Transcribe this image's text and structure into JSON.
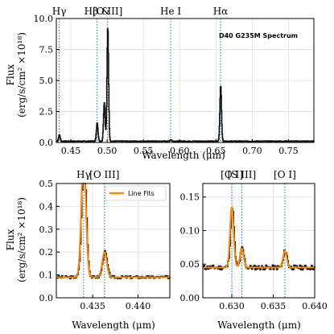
{
  "colors": {
    "data": "#111111",
    "fit": "#ff8c00",
    "marker": "#1f77b4",
    "grid": "#e6e6e6"
  },
  "chart_data": [
    {
      "type": "line",
      "xlabel": "Wavelength (μm)",
      "ylabel_line1": "Flux",
      "ylabel_line2": "(erg/s/cm² ×10¹⁸)",
      "annotation": "D40 G235M Spectrum",
      "xlim": [
        0.43,
        0.785
      ],
      "ylim": [
        0,
        10
      ],
      "xticks": [
        "0.45",
        "0.50",
        "0.55",
        "0.60",
        "0.65",
        "0.70",
        "0.75"
      ],
      "xtick_values": [
        0.45,
        0.5,
        0.55,
        0.6,
        0.65,
        0.7,
        0.75
      ],
      "yticks": [
        "0.0",
        "2.5",
        "5.0",
        "7.5",
        "10.0"
      ],
      "ytick_values": [
        0,
        2.5,
        5,
        7.5,
        10
      ],
      "grid": true,
      "line_markers": [
        {
          "label": "Hγ",
          "x": 0.434
        },
        {
          "label": "Hβ &",
          "x": 0.4861
        },
        {
          "label": "[O III]",
          "x": 0.5007
        },
        {
          "label": "He I",
          "x": 0.5876
        },
        {
          "label": "Hα",
          "x": 0.6563
        }
      ],
      "continuum": 0.1,
      "lines": [
        {
          "x": 0.434,
          "peak": 0.6
        },
        {
          "x": 0.4861,
          "peak": 1.6
        },
        {
          "x": 0.4959,
          "peak": 3.2
        },
        {
          "x": 0.5007,
          "peak": 9.3
        },
        {
          "x": 0.5876,
          "peak": 0.22
        },
        {
          "x": 0.6563,
          "peak": 4.6
        }
      ]
    },
    {
      "type": "line",
      "xlabel": "Wavelength (μm)",
      "ylabel_line1": "Flux",
      "ylabel_line2": "(erg/s/cm² ×10¹⁸)",
      "xlim": [
        0.431,
        0.4435
      ],
      "ylim": [
        0,
        0.5
      ],
      "xticks": [
        "0.435",
        "0.440"
      ],
      "xtick_values": [
        0.435,
        0.44
      ],
      "yticks": [
        "0.0",
        "0.1",
        "0.2",
        "0.3",
        "0.4",
        "0.5"
      ],
      "ytick_values": [
        0,
        0.1,
        0.2,
        0.3,
        0.4,
        0.5
      ],
      "grid": true,
      "legend": {
        "label": "Line Fits",
        "placement": "upper-right"
      },
      "line_markers": [
        {
          "label": "Hγ",
          "x": 0.434
        },
        {
          "label": "[O III]",
          "x": 0.4363
        }
      ],
      "continuum": 0.09,
      "lines": [
        {
          "x": 0.434,
          "peak": 0.62
        },
        {
          "x": 0.4363,
          "peak": 0.2
        }
      ]
    },
    {
      "type": "line",
      "xlabel": "Wavelength (μm)",
      "xlim": [
        0.6265,
        0.64
      ],
      "ylim": [
        0,
        0.17
      ],
      "xticks": [
        "0.630",
        "0.635",
        "0.640"
      ],
      "xtick_values": [
        0.63,
        0.635,
        0.64
      ],
      "yticks": [
        "0.00",
        "0.05",
        "0.10",
        "0.15"
      ],
      "ytick_values": [
        0,
        0.05,
        0.1,
        0.15
      ],
      "grid": true,
      "line_markers": [
        {
          "label": "[O I]",
          "x": 0.63
        },
        {
          "label": "[S III]",
          "x": 0.6312
        },
        {
          "label": "[O I]",
          "x": 0.6364
        }
      ],
      "continuum": 0.045,
      "lines": [
        {
          "x": 0.63,
          "peak": 0.135
        },
        {
          "x": 0.6312,
          "peak": 0.073
        },
        {
          "x": 0.6364,
          "peak": 0.07
        }
      ]
    }
  ]
}
